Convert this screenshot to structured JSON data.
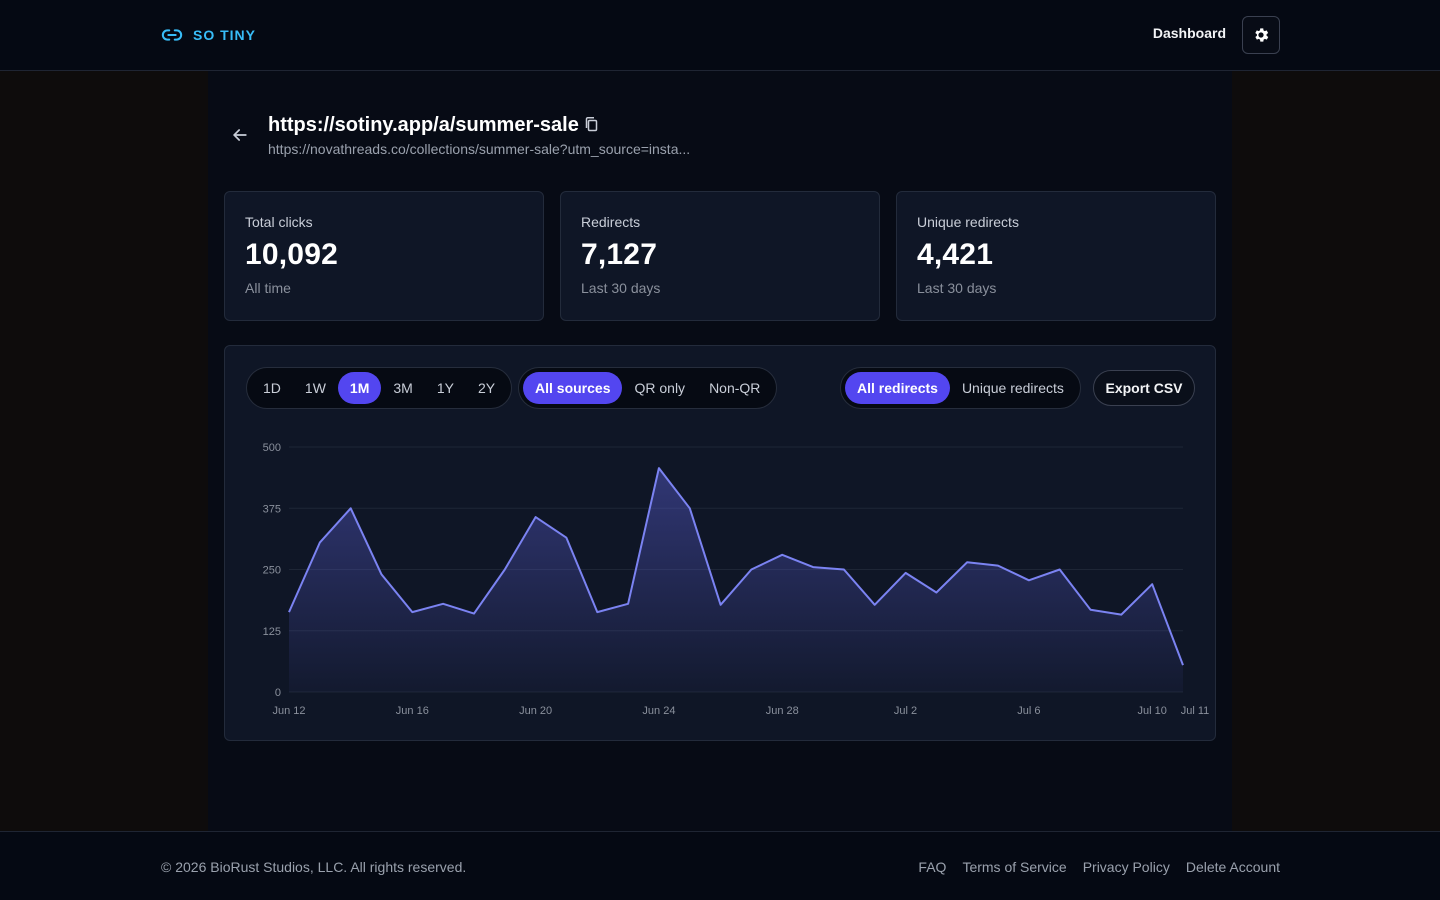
{
  "header": {
    "brand": "SO TINY",
    "nav_dashboard": "Dashboard",
    "brand_color": "#38bdf8",
    "icons": {
      "brand": "link-icon",
      "settings": "gear-icon"
    }
  },
  "link": {
    "short_url": "https://sotiny.app/a/summer-sale",
    "long_url": "https://novathreads.co/collections/summer-sale?utm_source=insta..."
  },
  "stats": [
    {
      "label": "Total clicks",
      "value": "10,092",
      "sub": "All time"
    },
    {
      "label": "Redirects",
      "value": "7,127",
      "sub": "Last 30 days"
    },
    {
      "label": "Unique redirects",
      "value": "4,421",
      "sub": "Last 30 days"
    }
  ],
  "filters": {
    "ranges": [
      "1D",
      "1W",
      "1M",
      "3M",
      "1Y",
      "2Y"
    ],
    "range_active": "1M",
    "sources": [
      "All sources",
      "QR only",
      "Non-QR"
    ],
    "source_active": "All sources",
    "modes": [
      "All redirects",
      "Unique redirects"
    ],
    "mode_active": "All redirects",
    "export_label": "Export CSV",
    "accent_color": "#5346f0"
  },
  "chart_data": {
    "type": "area",
    "title": "",
    "xlabel": "",
    "ylabel": "",
    "ylim": [
      0,
      500
    ],
    "yticks": [
      0,
      125,
      250,
      375,
      500
    ],
    "x_tick_labels": [
      "Jun 12",
      "Jun 16",
      "Jun 20",
      "Jun 24",
      "Jun 28",
      "Jul 2",
      "Jul 6",
      "Jul 10",
      "Jul 11"
    ],
    "x": [
      "Jun 12",
      "Jun 13",
      "Jun 14",
      "Jun 15",
      "Jun 16",
      "Jun 17",
      "Jun 18",
      "Jun 19",
      "Jun 20",
      "Jun 21",
      "Jun 22",
      "Jun 23",
      "Jun 24",
      "Jun 25",
      "Jun 26",
      "Jun 27",
      "Jun 28",
      "Jun 29",
      "Jun 30",
      "Jul 1",
      "Jul 2",
      "Jul 3",
      "Jul 4",
      "Jul 5",
      "Jul 6",
      "Jul 7",
      "Jul 8",
      "Jul 9",
      "Jul 10",
      "Jul 11"
    ],
    "values": [
      163,
      305,
      375,
      240,
      163,
      180,
      160,
      250,
      357,
      315,
      163,
      180,
      457,
      375,
      178,
      250,
      280,
      255,
      250,
      178,
      243,
      203,
      265,
      258,
      228,
      250,
      168,
      158,
      220,
      55
    ],
    "line_color": "#7b83f2",
    "grid": true
  },
  "footer": {
    "copyright": "© 2026 BioRust Studios, LLC. All rights reserved.",
    "links": [
      "FAQ",
      "Terms of Service",
      "Privacy Policy",
      "Delete Account"
    ]
  }
}
